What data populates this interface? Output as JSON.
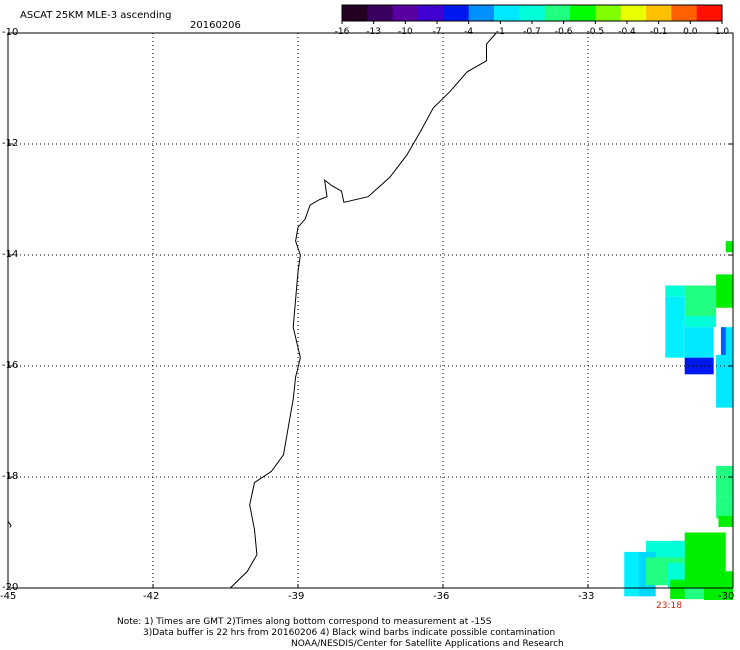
{
  "header": {
    "title": "ASCAT 25KM MLE-3 ascending",
    "date": "20160206"
  },
  "colorbar": {
    "colors": [
      "#220022",
      "#3a0060",
      "#5a00a0",
      "#4000d0",
      "#0018f0",
      "#0090ff",
      "#00e8ff",
      "#00ffd8",
      "#20ff80",
      "#00ff00",
      "#80ff00",
      "#e8ff00",
      "#ffc000",
      "#ff6000",
      "#ff1000"
    ],
    "tick_labels": [
      "-16",
      "-13",
      "-10",
      "-7",
      "-4",
      "-1",
      "-0.7",
      "-0.6",
      "-0.5",
      "-0.4",
      "-0.1",
      "0.0",
      "1.0"
    ]
  },
  "map": {
    "y_labels": [
      "-10",
      "-12",
      "-14",
      "-16",
      "-18",
      "-20"
    ],
    "x_labels": [
      "-45",
      "-42",
      "-39",
      "-36",
      "-33",
      "-30"
    ],
    "lon_range": [
      -45,
      -30
    ],
    "lat_range": [
      -10,
      -20
    ],
    "grid": "dotted",
    "time_label": "23:18"
  },
  "notes": {
    "line1": "Note: 1) Times are GMT 2)Times along bottom correspond to measurement at -15S",
    "line2": "3)Data buffer is 22 hrs from 20160206 4) Black wind barbs indicate possible contamination",
    "line3": "NOAA/NESDIS/Center for Satellite Applications and Research"
  }
}
